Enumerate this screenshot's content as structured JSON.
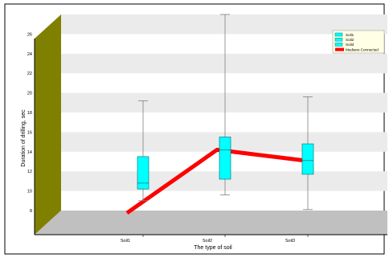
{
  "chart_data": {
    "type": "box",
    "title": "",
    "xlabel": "The type of soil",
    "ylabel": "Duration of drilling, sec",
    "ylim": [
      8,
      28
    ],
    "yticks": [
      8,
      10,
      12,
      14,
      16,
      18,
      20,
      22,
      24,
      26
    ],
    "categories": [
      "Soil1",
      "Soil2",
      "Soil3"
    ],
    "boxes": [
      {
        "name": "Soil1",
        "min": 9,
        "q1": 10.2,
        "median": 10.8,
        "q3": 13.5,
        "max": 19.2
      },
      {
        "name": "Soil2",
        "min": 9.6,
        "q1": 11.2,
        "median": 14.2,
        "q3": 15.5,
        "max": 28
      },
      {
        "name": "Soil3",
        "min": 8.1,
        "q1": 11.7,
        "median": 13.1,
        "q3": 14.8,
        "max": 19.6
      }
    ],
    "medians_connected": [
      10.8,
      14.2,
      13.1
    ],
    "legend": {
      "position": "top-right",
      "entries": [
        {
          "label": "Soil1",
          "color": "#00ffff"
        },
        {
          "label": "Soil2",
          "color": "#00ffff"
        },
        {
          "label": "Soil3",
          "color": "#00ffff"
        },
        {
          "label": "Medians Connected",
          "color": "#ff0000"
        }
      ]
    },
    "colors": {
      "box": "#00ffff",
      "box_edge": "#008080",
      "median_line": "#ff0000",
      "side_wall": "#808000",
      "floor": "#c0c0c0",
      "stripe": "#ebebeb",
      "whisker": "#808080"
    },
    "grid": true
  }
}
